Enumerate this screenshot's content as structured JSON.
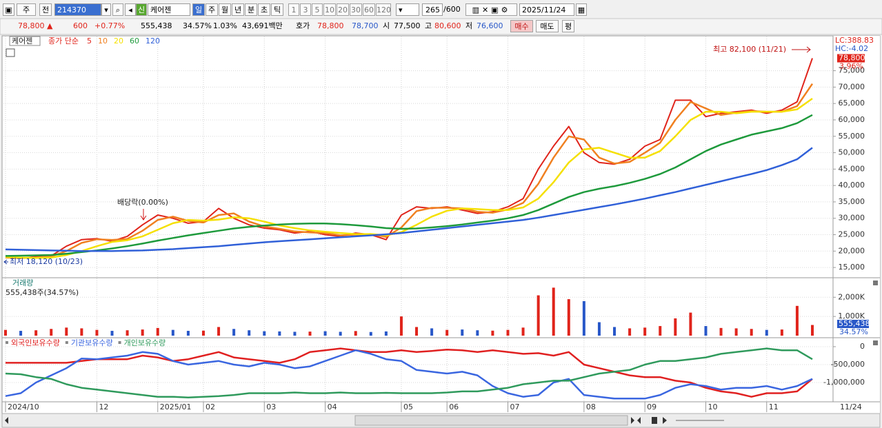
{
  "toolbar": {
    "market": "주",
    "range": "전",
    "code": "214370",
    "new": "신",
    "name": "케어젠",
    "periods": [
      "일",
      "주",
      "월",
      "년",
      "분",
      "초",
      "틱"
    ],
    "intervals": [
      "1",
      "3",
      "5",
      "10",
      "20",
      "30",
      "60",
      "120"
    ],
    "count": "265",
    "max": "/600",
    "date": "2025/11/24"
  },
  "quote": {
    "price": "78,800 ▲",
    "change": "600",
    "change_pct": "+0.77%",
    "volume": "555,438",
    "volume_ratio": "34.57%",
    "turnover": "1.03%",
    "amount": "43,691백만",
    "ask_label": "호가",
    "ask": "78,800",
    "bid": "78,700",
    "open_label": "시",
    "open": "77,500",
    "high_label": "고",
    "high": "80,600",
    "low_label": "저",
    "low": "76,600",
    "buy": "매수",
    "sell": "매도",
    "avg": "평"
  },
  "x_axis": {
    "categories": [
      "2024/10",
      null,
      null,
      null,
      null,
      null,
      "12",
      null,
      null,
      null,
      "2025/01",
      null,
      null,
      "02",
      null,
      null,
      null,
      "03",
      null,
      null,
      null,
      "04",
      null,
      null,
      null,
      null,
      "05",
      null,
      null,
      "06",
      null,
      null,
      null,
      "07",
      null,
      null,
      null,
      null,
      "08",
      null,
      null,
      null,
      "09",
      null,
      null,
      null,
      "10",
      null,
      null,
      null,
      "11",
      null,
      null,
      null
    ],
    "end_label": "11/24"
  },
  "chart_data": [
    {
      "type": "line",
      "title": "케어젠",
      "subtitle": "종가 단순",
      "ylim": [
        12500,
        85000
      ],
      "yticks": [
        {
          "value": 15000,
          "label": "15,000"
        },
        {
          "value": 20000,
          "label": "20,000"
        },
        {
          "value": 25000,
          "label": "25,000"
        },
        {
          "value": 30000,
          "label": "30,000"
        },
        {
          "value": 35000,
          "label": "35,000"
        },
        {
          "value": 40000,
          "label": "40,000"
        },
        {
          "value": 45000,
          "label": "45,000"
        },
        {
          "value": 50000,
          "label": "50,000"
        },
        {
          "value": 55000,
          "label": "55,000"
        },
        {
          "value": 60000,
          "label": "60,000"
        },
        {
          "value": 65000,
          "label": "65,000"
        },
        {
          "value": 70000,
          "label": "70,000"
        },
        {
          "value": 75000,
          "label": "75,000"
        }
      ],
      "grid": true,
      "series": [
        {
          "name": "5",
          "color": "#e0241b",
          "values": [
            18000,
            17800,
            18300,
            18500,
            21500,
            23500,
            23800,
            23000,
            24500,
            28000,
            31000,
            30000,
            28500,
            29000,
            33000,
            30000,
            28000,
            27000,
            26500,
            25500,
            26000,
            25000,
            24500,
            25500,
            25000,
            23500,
            31000,
            33500,
            33000,
            33500,
            32500,
            31500,
            32000,
            33500,
            36000,
            45000,
            52000,
            58000,
            50000,
            47000,
            46500,
            48000,
            52000,
            54000,
            66000,
            66000,
            61000,
            62000,
            62500,
            63000,
            62000,
            63000,
            65500,
            78800
          ]
        },
        {
          "name": "10",
          "color": "#f08020",
          "values": [
            18000,
            17900,
            18050,
            18400,
            20000,
            22500,
            23600,
            23400,
            23700,
            26200,
            29500,
            30500,
            29200,
            28700,
            31000,
            31500,
            29000,
            27500,
            26800,
            26000,
            25700,
            25500,
            24800,
            25000,
            25200,
            24300,
            27200,
            32200,
            33200,
            33200,
            33000,
            32000,
            31700,
            32700,
            34700,
            40500,
            48500,
            55000,
            54000,
            48500,
            46700,
            47200,
            50000,
            53000,
            60000,
            65500,
            63500,
            61500,
            62200,
            62700,
            62500,
            62500,
            64200,
            71000
          ]
        },
        {
          "name": "20",
          "color": "#f5e000",
          "values": [
            18200,
            18000,
            17900,
            18000,
            18800,
            20000,
            21500,
            22800,
            23300,
            24500,
            26500,
            28500,
            29500,
            29300,
            29600,
            30300,
            30000,
            29000,
            27800,
            27000,
            26300,
            25900,
            25500,
            25200,
            25200,
            24800,
            25800,
            28000,
            30500,
            32300,
            33000,
            32800,
            32500,
            32500,
            33300,
            36000,
            41000,
            47000,
            51000,
            51500,
            50000,
            48500,
            48500,
            50500,
            55000,
            60000,
            62500,
            62500,
            62000,
            62500,
            62500,
            62500,
            63200,
            66500
          ]
        },
        {
          "name": "60",
          "color": "#1e9a3c",
          "values": [
            18500,
            18600,
            18700,
            18800,
            19200,
            19700,
            20200,
            20800,
            21500,
            22300,
            23200,
            24000,
            24800,
            25500,
            26200,
            26900,
            27400,
            27800,
            28100,
            28300,
            28400,
            28400,
            28200,
            27900,
            27500,
            27000,
            26800,
            26900,
            27200,
            27600,
            28100,
            28700,
            29300,
            30000,
            31000,
            32500,
            34500,
            36500,
            38000,
            39000,
            39800,
            40800,
            42000,
            43500,
            45500,
            48000,
            50500,
            52500,
            54000,
            55500,
            56500,
            57500,
            59000,
            61500
          ]
        },
        {
          "name": "120",
          "color": "#3060d8",
          "values": [
            20500,
            20400,
            20300,
            20200,
            20100,
            20000,
            20000,
            20000,
            20100,
            20200,
            20400,
            20600,
            20900,
            21200,
            21500,
            21900,
            22300,
            22700,
            23000,
            23300,
            23600,
            23900,
            24200,
            24500,
            24800,
            25100,
            25500,
            26000,
            26500,
            27000,
            27500,
            28000,
            28500,
            29000,
            29500,
            30200,
            31000,
            31800,
            32600,
            33400,
            34200,
            35100,
            36000,
            37000,
            38000,
            39100,
            40200,
            41300,
            42400,
            43500,
            44700,
            46200,
            48000,
            51500
          ]
        }
      ],
      "annotations": {
        "high": "최고 82,100 (11/21)",
        "low": "최저 18,120 (10/23)",
        "dividend": "배당락(0.00%)"
      },
      "right_labels": {
        "lc": "LC:388.83",
        "hc": "HC:-4.02",
        "last": "78,800",
        "change": "3.96%"
      }
    },
    {
      "type": "bar",
      "title": "거래량",
      "subtitle": "555,438주(34.57%)",
      "ylim": [
        0,
        2800000
      ],
      "yticks": [
        {
          "value": 1000000,
          "label": "1,000K"
        },
        {
          "value": 2000000,
          "label": "2,000K"
        }
      ],
      "grid": true,
      "up_color": "#e0241b",
      "down_color": "#2857c8",
      "values": [
        300000,
        250000,
        280000,
        350000,
        420000,
        380000,
        300000,
        250000,
        280000,
        320000,
        400000,
        300000,
        250000,
        260000,
        450000,
        350000,
        280000,
        230000,
        220000,
        200000,
        210000,
        230000,
        200000,
        240000,
        190000,
        220000,
        1000000,
        450000,
        380000,
        300000,
        320000,
        280000,
        260000,
        300000,
        420000,
        2100000,
        2500000,
        1900000,
        1800000,
        700000,
        450000,
        380000,
        420000,
        500000,
        900000,
        1200000,
        500000,
        400000,
        380000,
        350000,
        300000,
        320000,
        1550000,
        555438
      ],
      "right_labels": {
        "last": "555,438",
        "ratio": "34.57%"
      }
    },
    {
      "type": "line",
      "ylim": [
        -1540000,
        135000
      ],
      "yticks": [
        0,
        {
          "value": -500000,
          "label": "-500,000"
        },
        {
          "value": -1000000,
          "label": "-1,000,000"
        }
      ],
      "grid": true,
      "series": [
        {
          "name": "외국인보유수량",
          "color": "#e02020",
          "values": [
            -450000,
            -450000,
            -450000,
            -450000,
            -450000,
            -400000,
            -350000,
            -350000,
            -350000,
            -250000,
            -300000,
            -400000,
            -350000,
            -250000,
            -150000,
            -300000,
            -350000,
            -400000,
            -450000,
            -350000,
            -150000,
            -100000,
            -50000,
            -100000,
            -150000,
            -150000,
            -100000,
            -150000,
            -120000,
            -80000,
            -100000,
            -150000,
            -100000,
            -150000,
            -200000,
            -180000,
            -250000,
            -150000,
            -500000,
            -600000,
            -700000,
            -800000,
            -850000,
            -850000,
            -950000,
            -1000000,
            -1150000,
            -1250000,
            -1300000,
            -1400000,
            -1300000,
            -1300000,
            -1250000,
            -900000
          ]
        },
        {
          "name": "기관보유수량",
          "color": "#3a66e0",
          "values": [
            -1380000,
            -1300000,
            -1000000,
            -800000,
            -600000,
            -330000,
            -350000,
            -300000,
            -250000,
            -150000,
            -200000,
            -400000,
            -500000,
            -450000,
            -400000,
            -500000,
            -550000,
            -450000,
            -500000,
            -600000,
            -550000,
            -400000,
            -250000,
            -100000,
            -200000,
            -350000,
            -400000,
            -650000,
            -700000,
            -750000,
            -700000,
            -800000,
            -1100000,
            -1300000,
            -1400000,
            -1350000,
            -1000000,
            -900000,
            -1350000,
            -1400000,
            -1450000,
            -1450000,
            -1450000,
            -1350000,
            -1150000,
            -1050000,
            -1100000,
            -1200000,
            -1150000,
            -1150000,
            -1100000,
            -1200000,
            -1100000,
            -900000
          ]
        },
        {
          "name": "개인보유수량",
          "color": "#2f9a5c",
          "values": [
            -750000,
            -770000,
            -850000,
            -900000,
            -1050000,
            -1150000,
            -1200000,
            -1250000,
            -1300000,
            -1350000,
            -1400000,
            -1400000,
            -1420000,
            -1400000,
            -1380000,
            -1350000,
            -1300000,
            -1300000,
            -1300000,
            -1280000,
            -1300000,
            -1300000,
            -1280000,
            -1300000,
            -1300000,
            -1290000,
            -1300000,
            -1300000,
            -1300000,
            -1280000,
            -1250000,
            -1250000,
            -1200000,
            -1150000,
            -1050000,
            -1000000,
            -950000,
            -950000,
            -850000,
            -750000,
            -700000,
            -650000,
            -500000,
            -400000,
            -400000,
            -350000,
            -300000,
            -200000,
            -150000,
            -100000,
            -50000,
            -100000,
            -100000,
            -350000
          ]
        }
      ]
    }
  ]
}
